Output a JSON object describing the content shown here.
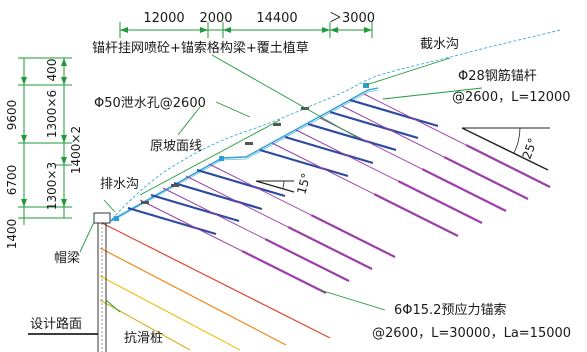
{
  "colors": {
    "dimension": "#1f9a3a",
    "leader": "#1f9a3a",
    "slope_line": "#2a9fd6",
    "original_slope": "#2a9fd6",
    "anchor_bolt": "#2b4aa0",
    "prestressed_cable": "#9b3fa8",
    "pile_lines": [
      "#e0452e",
      "#f08a1f",
      "#f2c01a",
      "#d6b020"
    ],
    "structure": "#333333"
  },
  "top_dimensions": [
    "12000",
    "2000",
    "14400",
    "＞3000"
  ],
  "left_dimensions": {
    "outer": [
      "400",
      "9600",
      "6700",
      "1400"
    ],
    "inner": [
      "1300×6",
      "1300×3",
      "1400×2"
    ]
  },
  "labels": {
    "slope_protection": "锚杆挂网喷砼+锚索格构梁+覆土植草",
    "drain_hole": "Φ50泄水孔@2600",
    "original_slope": "原坡面线",
    "drainage_ditch": "排水沟",
    "intercept_ditch": "截水沟",
    "anchor_bolt_line1": "Φ28钢筋锚杆",
    "anchor_bolt_line2": "@2600，L=12000",
    "angle_slope": "25°",
    "angle_anchor": "15°",
    "cap_beam": "帽梁",
    "design_road": "设计路面",
    "anti_slide_pile": "抗滑桩",
    "cable_line1": "6Φ15.2预应力锚索",
    "cable_line2": "@2600，L=30000，La=15000"
  }
}
